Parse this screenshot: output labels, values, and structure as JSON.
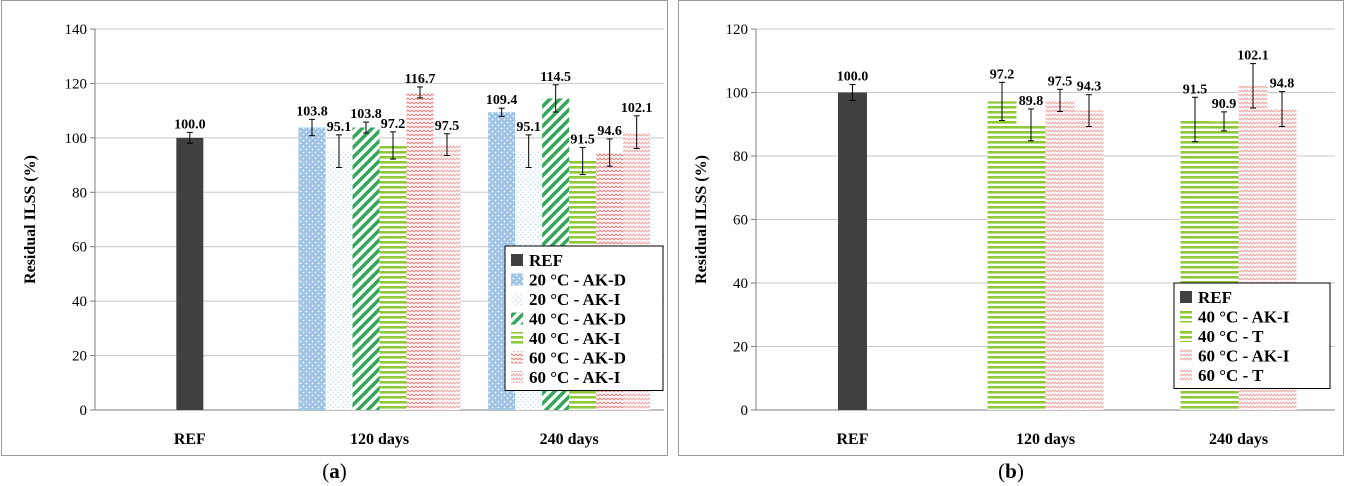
{
  "colors": {
    "REF": "#404040",
    "20 °C - AK-D": "#9dc3e6",
    "20 °C - AK-I": "#bfe0f4",
    "40 °C - AK-D": "#33a65a",
    "40 °C - AK-I": "#8fc83a",
    "40 °C - T": "#8fc83a",
    "60 °C - AK-D": "#ef7b7b",
    "60 °C - AK-I": "#f2a0a0",
    "60 °C - T": "#f2a0a0"
  },
  "captions": {
    "a_open": "(",
    "a_letter": "a",
    "a_close": ")",
    "b_open": "(",
    "b_letter": "b",
    "b_close": ")"
  },
  "chart_data": [
    {
      "id": "a",
      "type": "bar",
      "ylabel": "Residual ILSS (%)",
      "ylim": [
        0,
        140
      ],
      "yticks": [
        0,
        20,
        40,
        60,
        80,
        100,
        120,
        140
      ],
      "grid": true,
      "legend_position": "bottom-right",
      "categories": [
        "REF",
        "120 days",
        "240 days"
      ],
      "series": [
        {
          "name": "REF",
          "values": [
            100.0,
            null,
            null
          ],
          "errors": [
            2.0,
            null,
            null
          ],
          "labels": [
            "100.0",
            "",
            ""
          ]
        },
        {
          "name": "20 °C - AK-D",
          "values": [
            null,
            103.8,
            109.4
          ],
          "errors": [
            null,
            3.0,
            1.5
          ],
          "labels": [
            "",
            "103.8",
            "109.4"
          ]
        },
        {
          "name": "20 °C - AK-I",
          "values": [
            null,
            95.1,
            95.1
          ],
          "errors": [
            null,
            6.0,
            6.0
          ],
          "labels": [
            "",
            "95.1",
            "95.1"
          ]
        },
        {
          "name": "40 °C - AK-D",
          "values": [
            null,
            103.8,
            114.5
          ],
          "errors": [
            null,
            2.0,
            5.0
          ],
          "labels": [
            "",
            "103.8",
            "114.5"
          ]
        },
        {
          "name": "40 °C - AK-I",
          "values": [
            null,
            97.2,
            91.5
          ],
          "errors": [
            null,
            5.0,
            5.0
          ],
          "labels": [
            "",
            "97.2",
            "91.5"
          ]
        },
        {
          "name": "60 °C - AK-D",
          "values": [
            null,
            116.7,
            94.6
          ],
          "errors": [
            null,
            2.0,
            5.0
          ],
          "labels": [
            "",
            "116.7",
            "94.6"
          ]
        },
        {
          "name": "60 °C - AK-I",
          "values": [
            null,
            97.5,
            102.1
          ],
          "errors": [
            null,
            4.0,
            6.0
          ],
          "labels": [
            "",
            "97.5",
            "102.1"
          ]
        }
      ]
    },
    {
      "id": "b",
      "type": "bar",
      "ylabel": "Residual ILSS (%)",
      "ylim": [
        0,
        120
      ],
      "yticks": [
        0,
        20,
        40,
        60,
        80,
        100,
        120
      ],
      "grid": true,
      "legend_position": "bottom-right",
      "categories": [
        "REF",
        "120 days",
        "240 days"
      ],
      "series": [
        {
          "name": "REF",
          "values": [
            100.0,
            null,
            null
          ],
          "errors": [
            2.5,
            null,
            null
          ],
          "labels": [
            "100.0",
            "",
            ""
          ]
        },
        {
          "name": "40 °C - AK-I",
          "values": [
            null,
            97.2,
            91.5
          ],
          "errors": [
            null,
            6.0,
            7.0
          ],
          "labels": [
            "",
            "97.2",
            "91.5"
          ]
        },
        {
          "name": "40 °C - T",
          "values": [
            null,
            89.8,
            90.9
          ],
          "errors": [
            null,
            5.0,
            3.0
          ],
          "labels": [
            "",
            "89.8",
            "90.9"
          ]
        },
        {
          "name": "60 °C - AK-I",
          "values": [
            null,
            97.5,
            102.1
          ],
          "errors": [
            null,
            3.5,
            7.0
          ],
          "labels": [
            "",
            "97.5",
            "102.1"
          ]
        },
        {
          "name": "60 °C - T",
          "values": [
            null,
            94.3,
            94.8
          ],
          "errors": [
            null,
            5.0,
            5.5
          ],
          "labels": [
            "",
            "94.3",
            "94.8"
          ]
        }
      ]
    }
  ]
}
